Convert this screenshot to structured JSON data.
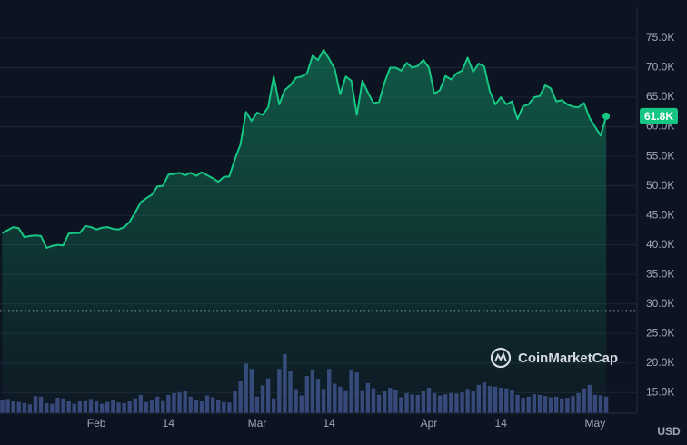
{
  "chart_data": {
    "type": "line",
    "currency": "USD",
    "watermark": "CoinMarketCap",
    "color": "#16c784",
    "volume_color": "#38457a",
    "grid": true,
    "xlim": [
      14.6,
      129.4
    ],
    "ylim": [
      11500,
      80000
    ],
    "yticks": [
      {
        "value": 15000,
        "label": "15.0K"
      },
      {
        "value": 20000,
        "label": "20.0K"
      },
      {
        "value": 25000,
        "label": "25.0K"
      },
      {
        "value": 30000,
        "label": "30.0K"
      },
      {
        "value": 35000,
        "label": "35.0K"
      },
      {
        "value": 40000,
        "label": "40.0K"
      },
      {
        "value": 45000,
        "label": "45.0K"
      },
      {
        "value": 50000,
        "label": "50.0K"
      },
      {
        "value": 55000,
        "label": "55.0K"
      },
      {
        "value": 60000,
        "label": "60.0K"
      },
      {
        "value": 65000,
        "label": "65.0K"
      },
      {
        "value": 70000,
        "label": "70.0K"
      },
      {
        "value": 75000,
        "label": "75.0K"
      }
    ],
    "xticks": [
      {
        "value": 32,
        "label": "Feb"
      },
      {
        "value": 45,
        "label": "14"
      },
      {
        "value": 61,
        "label": "Mar"
      },
      {
        "value": 74,
        "label": "14"
      },
      {
        "value": 92,
        "label": "Apr"
      },
      {
        "value": 105,
        "label": "14"
      },
      {
        "value": 122,
        "label": "May"
      }
    ],
    "reference_line": 28900,
    "current_price": {
      "value": 61800,
      "label": "61.8K"
    },
    "x": [
      15,
      16,
      17,
      18,
      19,
      20,
      21,
      22,
      23,
      24,
      25,
      26,
      27,
      28,
      29,
      30,
      31,
      32,
      33,
      34,
      35,
      36,
      37,
      38,
      39,
      40,
      41,
      42,
      43,
      44,
      45,
      46,
      47,
      48,
      49,
      50,
      51,
      52,
      53,
      54,
      55,
      56,
      57,
      58,
      59,
      60,
      61,
      62,
      63,
      64,
      65,
      66,
      67,
      68,
      69,
      70,
      71,
      72,
      73,
      74,
      75,
      76,
      77,
      78,
      79,
      80,
      81,
      82,
      83,
      84,
      85,
      86,
      87,
      88,
      89,
      90,
      91,
      92,
      93,
      94,
      95,
      96,
      97,
      98,
      99,
      100,
      101,
      102,
      103,
      104,
      105,
      106,
      107,
      108,
      109,
      110,
      111,
      112,
      113,
      114,
      115,
      116,
      117,
      118,
      119,
      120,
      121,
      122,
      123,
      124
    ],
    "values": [
      42000,
      42500,
      43000,
      42800,
      41300,
      41500,
      41600,
      41500,
      39500,
      39800,
      40000,
      39900,
      41900,
      42000,
      42000,
      43200,
      43000,
      42600,
      42900,
      43000,
      42700,
      42600,
      43000,
      43900,
      45500,
      47200,
      47900,
      48500,
      49900,
      50000,
      51900,
      52000,
      52200,
      51800,
      52200,
      51700,
      52300,
      51800,
      51300,
      50700,
      51500,
      51600,
      54500,
      57000,
      62500,
      61000,
      62400,
      62000,
      63300,
      68500,
      63800,
      66200,
      67000,
      68300,
      68500,
      69000,
      72000,
      71300,
      73000,
      71500,
      69800,
      65500,
      68500,
      67800,
      62000,
      67800,
      65800,
      64000,
      64200,
      67500,
      70000,
      70000,
      69500,
      70800,
      70000,
      70300,
      71300,
      70000,
      65600,
      66200,
      68600,
      68000,
      69000,
      69500,
      71700,
      69300,
      70700,
      70200,
      66000,
      63800,
      65000,
      63800,
      64300,
      61300,
      63500,
      63800,
      65000,
      65200,
      67000,
      66500,
      64300,
      64500,
      63800,
      63400,
      63300,
      64000,
      61500,
      60000,
      58500,
      61800
    ],
    "volume": [
      13800,
      13900,
      13600,
      13400,
      13200,
      13000,
      14400,
      14300,
      13200,
      13100,
      14100,
      14000,
      13500,
      13100,
      13600,
      13700,
      13900,
      13600,
      13100,
      13400,
      13800,
      13300,
      13200,
      13600,
      14000,
      14600,
      13400,
      13800,
      14300,
      13700,
      14600,
      14900,
      15000,
      15200,
      14300,
      13800,
      13600,
      14500,
      14200,
      13800,
      13400,
      13300,
      15200,
      17000,
      19900,
      19000,
      14300,
      16200,
      17400,
      14000,
      19000,
      21500,
      18700,
      15600,
      14500,
      17800,
      18900,
      17300,
      15600,
      19000,
      16500,
      16000,
      15400,
      18900,
      18400,
      15400,
      16600,
      15700,
      14600,
      15200,
      15800,
      15500,
      14200,
      14900,
      14700,
      14600,
      15300,
      15800,
      14900,
      14500,
      14700,
      14900,
      14800,
      15000,
      15600,
      15200,
      16300,
      16700,
      16100,
      16000,
      15800,
      15700,
      15500,
      14600,
      14100,
      14300,
      14700,
      14600,
      14400,
      14200,
      14300,
      14000,
      14100,
      14400,
      14900,
      15700,
      16300,
      14600,
      14500,
      14300
    ]
  }
}
